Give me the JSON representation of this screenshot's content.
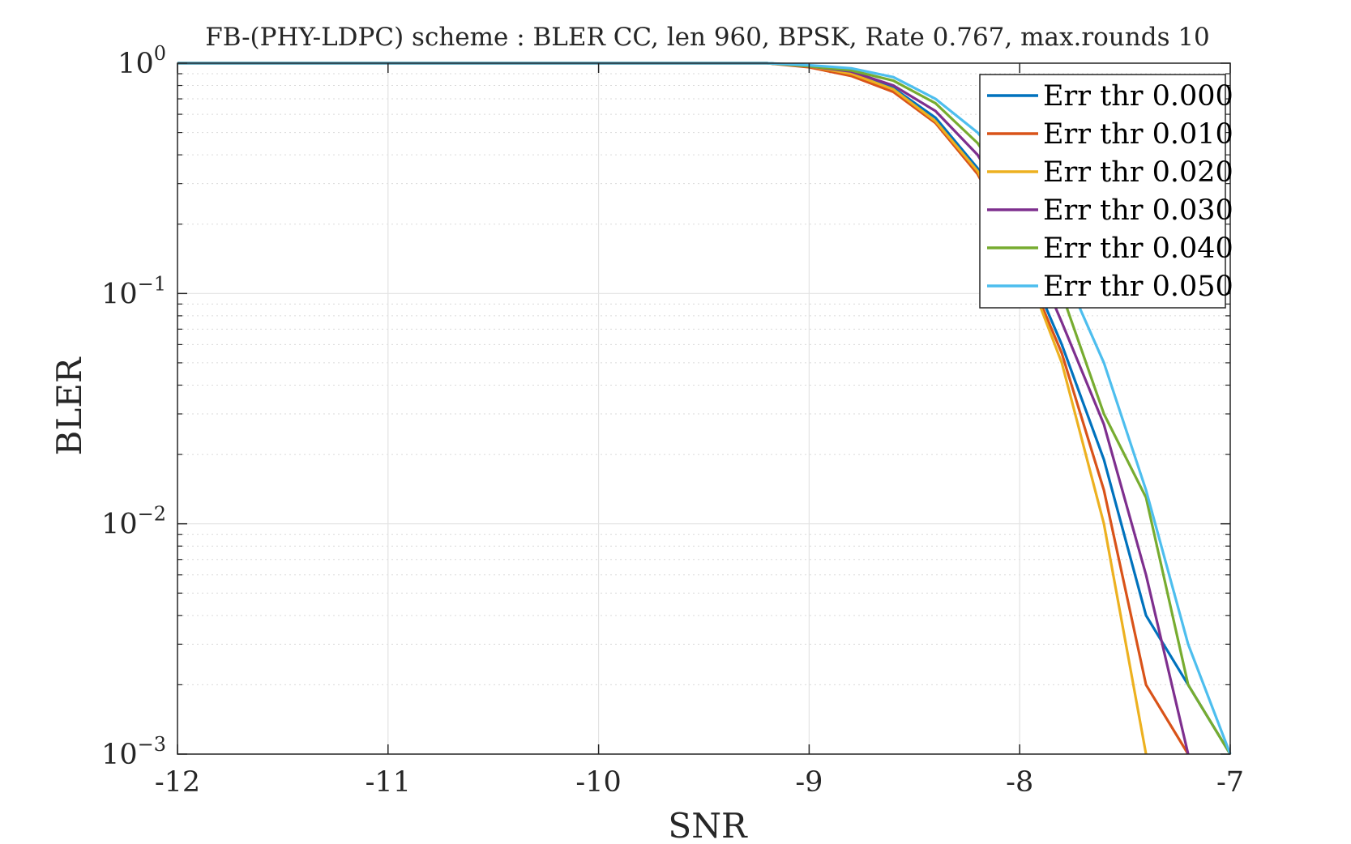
{
  "chart_data": {
    "type": "line",
    "title": "FB-(PHY-LDPC) scheme : BLER CC, len 960, BPSK, Rate 0.767, max.rounds 10",
    "xlabel": "SNR",
    "ylabel": "BLER",
    "xlim": [
      -12,
      -7
    ],
    "ylim": [
      0.001,
      1
    ],
    "yscale": "log",
    "grid": true,
    "minor_grid": true,
    "legend_position": "top-right",
    "x_ticks": [
      -12,
      -11,
      -10,
      -9,
      -8,
      -7
    ],
    "x_tick_labels": [
      "-12",
      "-11",
      "-10",
      "-9",
      "-8",
      "-7"
    ],
    "y_ticks": [
      {
        "value": 1,
        "base": "10",
        "exp": "0"
      },
      {
        "value": 0.1,
        "base": "10",
        "exp": "−1"
      },
      {
        "value": 0.01,
        "base": "10",
        "exp": "−2"
      },
      {
        "value": 0.001,
        "base": "10",
        "exp": "−3"
      }
    ],
    "series": [
      {
        "name": "Err thr 0.000",
        "color": "#0072BD",
        "x": [
          -12,
          -11.8,
          -11.6,
          -11.4,
          -11.2,
          -11,
          -10.8,
          -10.6,
          -10.4,
          -10.2,
          -10,
          -9.8,
          -9.6,
          -9.4,
          -9.2,
          -9,
          -8.8,
          -8.6,
          -8.4,
          -8.2,
          -8,
          -7.8,
          -7.6,
          -7.4,
          -7.2,
          -7
        ],
        "y": [
          1,
          1,
          1,
          1,
          1,
          1,
          1,
          1,
          1,
          1,
          1,
          1,
          1,
          1,
          1,
          0.97,
          0.9,
          0.78,
          0.58,
          0.35,
          0.16,
          0.06,
          0.019,
          0.004,
          0.002,
          0.001
        ]
      },
      {
        "name": "Err thr 0.010",
        "color": "#D95319",
        "x": [
          -12,
          -11.8,
          -11.6,
          -11.4,
          -11.2,
          -11,
          -10.8,
          -10.6,
          -10.4,
          -10.2,
          -10,
          -9.8,
          -9.6,
          -9.4,
          -9.2,
          -9,
          -8.8,
          -8.6,
          -8.4,
          -8.2,
          -8,
          -7.8,
          -7.6,
          -7.4,
          -7.2
        ],
        "y": [
          1,
          1,
          1,
          1,
          1,
          1,
          1,
          1,
          1,
          1,
          1,
          1,
          1,
          1,
          1,
          0.96,
          0.88,
          0.75,
          0.55,
          0.33,
          0.15,
          0.055,
          0.014,
          0.002,
          0.001
        ]
      },
      {
        "name": "Err thr 0.020",
        "color": "#EDB120",
        "x": [
          -12,
          -11.8,
          -11.6,
          -11.4,
          -11.2,
          -11,
          -10.8,
          -10.6,
          -10.4,
          -10.2,
          -10,
          -9.8,
          -9.6,
          -9.4,
          -9.2,
          -9,
          -8.8,
          -8.6,
          -8.4,
          -8.2,
          -8,
          -7.8,
          -7.6,
          -7.4
        ],
        "y": [
          1,
          1,
          1,
          1,
          1,
          1,
          1,
          1,
          1,
          1,
          1,
          1,
          1,
          1,
          1,
          0.97,
          0.9,
          0.77,
          0.56,
          0.34,
          0.15,
          0.05,
          0.01,
          0.001
        ]
      },
      {
        "name": "Err thr 0.030",
        "color": "#7E2F8E",
        "x": [
          -12,
          -11.8,
          -11.6,
          -11.4,
          -11.2,
          -11,
          -10.8,
          -10.6,
          -10.4,
          -10.2,
          -10,
          -9.8,
          -9.6,
          -9.4,
          -9.2,
          -9,
          -8.8,
          -8.6,
          -8.4,
          -8.2,
          -8,
          -7.8,
          -7.6,
          -7.4,
          -7.2
        ],
        "y": [
          1,
          1,
          1,
          1,
          1,
          1,
          1,
          1,
          1,
          1,
          1,
          1,
          1,
          1,
          1,
          0.97,
          0.92,
          0.8,
          0.62,
          0.4,
          0.2,
          0.075,
          0.027,
          0.006,
          0.001
        ]
      },
      {
        "name": "Err thr 0.040",
        "color": "#77AC30",
        "x": [
          -12,
          -11.8,
          -11.6,
          -11.4,
          -11.2,
          -11,
          -10.8,
          -10.6,
          -10.4,
          -10.2,
          -10,
          -9.8,
          -9.6,
          -9.4,
          -9.2,
          -9,
          -8.8,
          -8.6,
          -8.4,
          -8.2,
          -8,
          -7.8,
          -7.6,
          -7.4,
          -7.2,
          -7
        ],
        "y": [
          1,
          1,
          1,
          1,
          1,
          1,
          1,
          1,
          1,
          1,
          1,
          1,
          1,
          1,
          1,
          0.97,
          0.93,
          0.84,
          0.67,
          0.45,
          0.24,
          0.1,
          0.03,
          0.013,
          0.002,
          0.001
        ]
      },
      {
        "name": "Err thr 0.050",
        "color": "#4DBEEE",
        "x": [
          -12,
          -11.8,
          -11.6,
          -11.4,
          -11.2,
          -11,
          -10.8,
          -10.6,
          -10.4,
          -10.2,
          -10,
          -9.8,
          -9.6,
          -9.4,
          -9.2,
          -9,
          -8.8,
          -8.6,
          -8.4,
          -8.2,
          -8,
          -7.8,
          -7.6,
          -7.4,
          -7.2,
          -7
        ],
        "y": [
          1,
          1,
          1,
          1,
          1,
          1,
          1,
          1,
          1,
          1,
          1,
          1,
          1,
          1,
          1,
          0.98,
          0.95,
          0.87,
          0.7,
          0.5,
          0.3,
          0.13,
          0.05,
          0.014,
          0.003,
          0.001
        ]
      }
    ]
  }
}
